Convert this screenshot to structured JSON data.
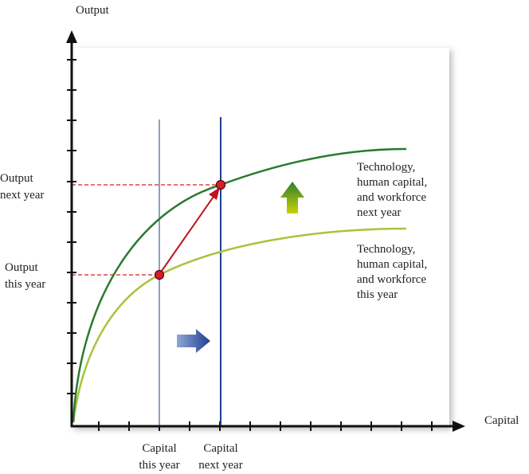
{
  "y_axis_label": "Output",
  "x_axis_label": "Capital",
  "y_labels": {
    "next_year": [
      "Output",
      "next year"
    ],
    "this_year": [
      "Output",
      "this year"
    ]
  },
  "x_labels": {
    "this_year": [
      "Capital",
      "this year"
    ],
    "next_year": [
      "Capital",
      "next year"
    ]
  },
  "curves": {
    "next_year": [
      "Technology,",
      "human capital,",
      "and workforce",
      "next year"
    ],
    "this_year": [
      "Technology,",
      "human capital,",
      "and workforce",
      "this year"
    ]
  }
}
